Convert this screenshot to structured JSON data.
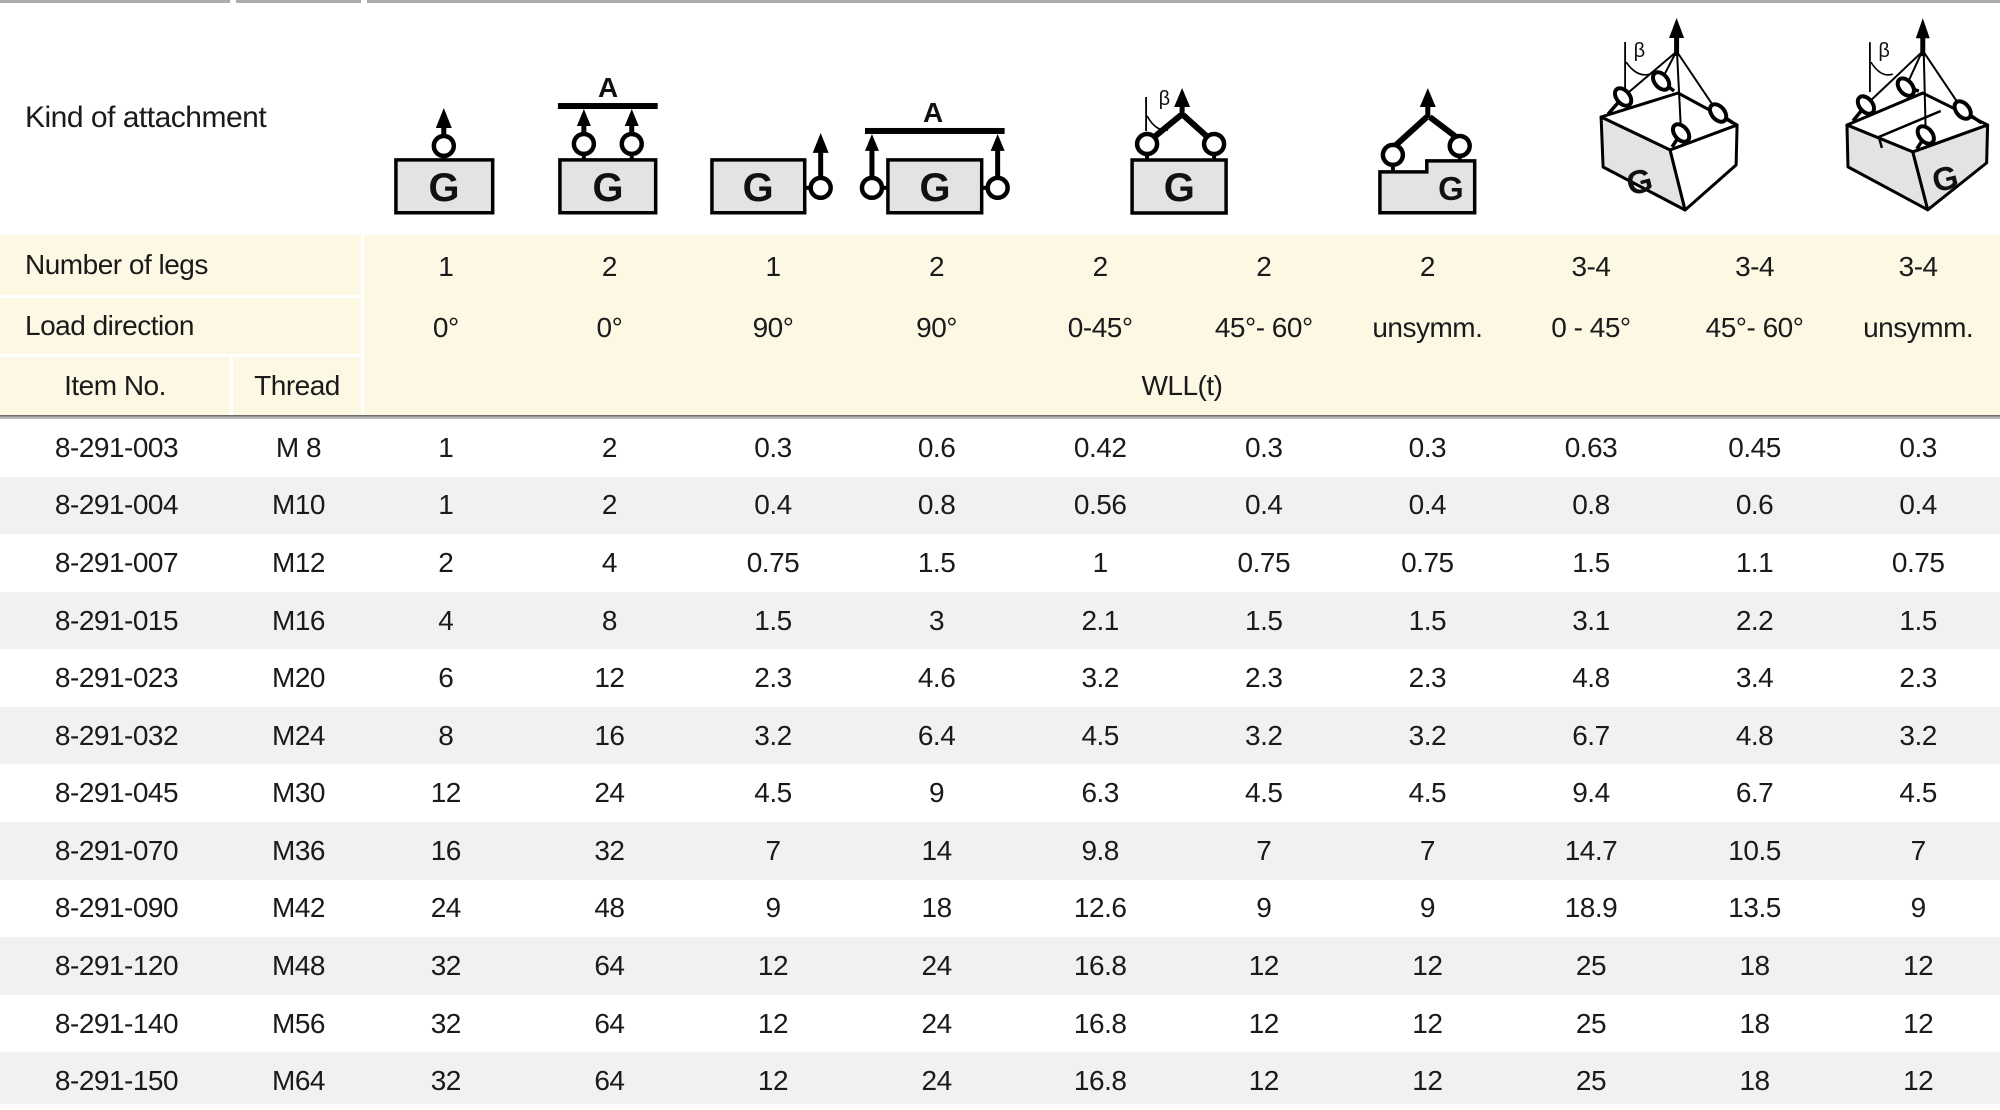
{
  "header": {
    "kind_of_attachment": "Kind of attachment",
    "number_of_legs_label": "Number of legs",
    "load_direction_label": "Load direction",
    "item_no_label": "Item No.",
    "thread_label": "Thread",
    "wll_label": "WLL(t)",
    "columns": [
      {
        "legs": "1",
        "direction": "0°"
      },
      {
        "legs": "2",
        "direction": "0°"
      },
      {
        "legs": "1",
        "direction": "90°"
      },
      {
        "legs": "2",
        "direction": "90°"
      },
      {
        "legs": "2",
        "direction": "0-45°"
      },
      {
        "legs": "2",
        "direction": "45°- 60°"
      },
      {
        "legs": "2",
        "direction": "unsymm."
      },
      {
        "legs": "3-4",
        "direction": "0 - 45°"
      },
      {
        "legs": "3-4",
        "direction": "45°- 60°"
      },
      {
        "legs": "3-4",
        "direction": "unsymm."
      }
    ]
  },
  "diagram_labels": {
    "load": "G",
    "beam": "A",
    "angle": "β"
  },
  "icons": [
    "attachment-1leg-0deg-icon",
    "attachment-2leg-0deg-beam-icon",
    "attachment-1leg-90deg-icon",
    "attachment-2leg-90deg-beam-icon",
    "attachment-2leg-angle-icon",
    "attachment-2leg-unsymm-icon",
    "attachment-3-4leg-angle-icon",
    "attachment-3-4leg-unsymm-icon"
  ],
  "colors": {
    "cream": "#fcf8e4",
    "stripe": "#f1f1f1",
    "diagram_box_fill": "#e3e3e3"
  },
  "table": {
    "rows": [
      {
        "item_no": "8-291-003",
        "thread": "M 8",
        "wll": [
          "1",
          "2",
          "0.3",
          "0.6",
          "0.42",
          "0.3",
          "0.3",
          "0.63",
          "0.45",
          "0.3"
        ]
      },
      {
        "item_no": "8-291-004",
        "thread": "M10",
        "wll": [
          "1",
          "2",
          "0.4",
          "0.8",
          "0.56",
          "0.4",
          "0.4",
          "0.8",
          "0.6",
          "0.4"
        ]
      },
      {
        "item_no": "8-291-007",
        "thread": "M12",
        "wll": [
          "2",
          "4",
          "0.75",
          "1.5",
          "1",
          "0.75",
          "0.75",
          "1.5",
          "1.1",
          "0.75"
        ]
      },
      {
        "item_no": "8-291-015",
        "thread": "M16",
        "wll": [
          "4",
          "8",
          "1.5",
          "3",
          "2.1",
          "1.5",
          "1.5",
          "3.1",
          "2.2",
          "1.5"
        ]
      },
      {
        "item_no": "8-291-023",
        "thread": "M20",
        "wll": [
          "6",
          "12",
          "2.3",
          "4.6",
          "3.2",
          "2.3",
          "2.3",
          "4.8",
          "3.4",
          "2.3"
        ]
      },
      {
        "item_no": "8-291-032",
        "thread": "M24",
        "wll": [
          "8",
          "16",
          "3.2",
          "6.4",
          "4.5",
          "3.2",
          "3.2",
          "6.7",
          "4.8",
          "3.2"
        ]
      },
      {
        "item_no": "8-291-045",
        "thread": "M30",
        "wll": [
          "12",
          "24",
          "4.5",
          "9",
          "6.3",
          "4.5",
          "4.5",
          "9.4",
          "6.7",
          "4.5"
        ]
      },
      {
        "item_no": "8-291-070",
        "thread": "M36",
        "wll": [
          "16",
          "32",
          "7",
          "14",
          "9.8",
          "7",
          "7",
          "14.7",
          "10.5",
          "7"
        ]
      },
      {
        "item_no": "8-291-090",
        "thread": "M42",
        "wll": [
          "24",
          "48",
          "9",
          "18",
          "12.6",
          "9",
          "9",
          "18.9",
          "13.5",
          "9"
        ]
      },
      {
        "item_no": "8-291-120",
        "thread": "M48",
        "wll": [
          "32",
          "64",
          "12",
          "24",
          "16.8",
          "12",
          "12",
          "25",
          "18",
          "12"
        ]
      },
      {
        "item_no": "8-291-140",
        "thread": "M56",
        "wll": [
          "32",
          "64",
          "12",
          "24",
          "16.8",
          "12",
          "12",
          "25",
          "18",
          "12"
        ]
      },
      {
        "item_no": "8-291-150",
        "thread": "M64",
        "wll": [
          "32",
          "64",
          "12",
          "24",
          "16.8",
          "12",
          "12",
          "25",
          "18",
          "12"
        ]
      }
    ]
  }
}
